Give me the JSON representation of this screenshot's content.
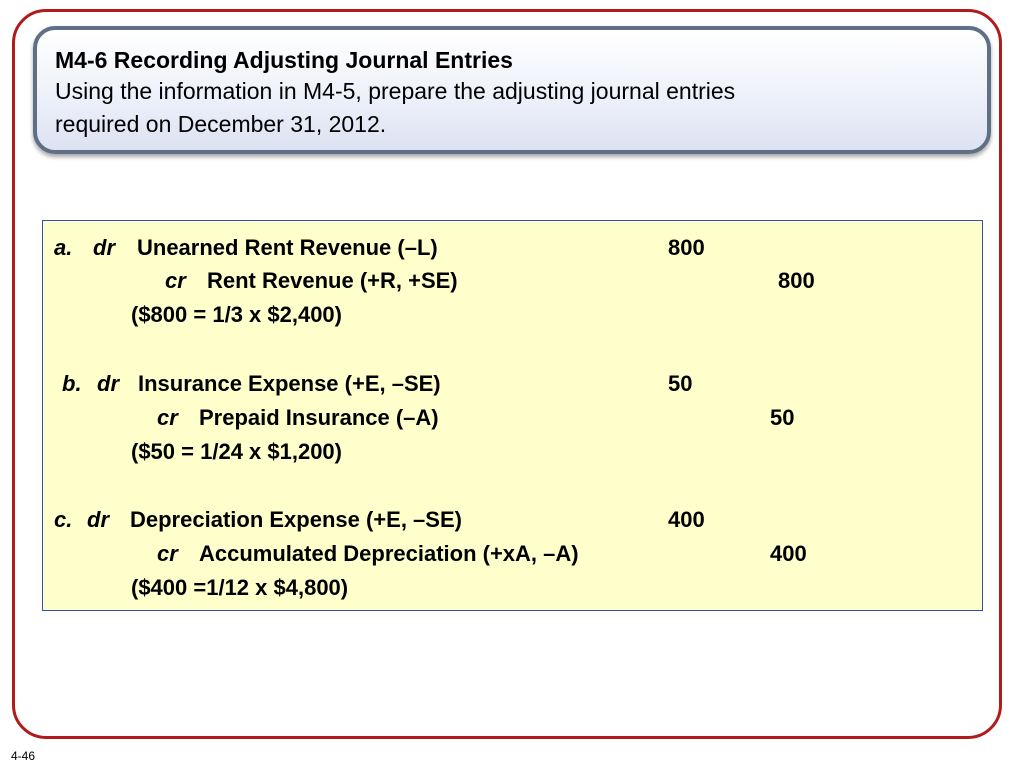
{
  "header": {
    "title": "M4-6 Recording Adjusting Journal Entries",
    "subtitle_line1": "Using the information in M4-5, prepare the adjusting journal entries",
    "subtitle_line2": "required on December 31, 2012."
  },
  "entries": [
    {
      "letter": "a.",
      "dr_label": "dr",
      "debit_account": "Unearned Rent Revenue (–L)",
      "debit_amount": "800",
      "cr_label": "cr",
      "credit_account": "Rent Revenue (+R, +SE)",
      "credit_amount": "800",
      "calc": "($800 = 1/3 x $2,400)"
    },
    {
      "letter": "b.",
      "dr_label": "dr",
      "debit_account": "Insurance Expense (+E, –SE)",
      "debit_amount": "50",
      "cr_label": "cr",
      "credit_account": "Prepaid Insurance (–A)",
      "credit_amount": "50",
      "calc": "($50 = 1/24 x $1,200)"
    },
    {
      "letter": "c.",
      "dr_label": "dr",
      "debit_account": "Depreciation Expense (+E, –SE)",
      "debit_amount": "400",
      "cr_label": "cr",
      "credit_account": "Accumulated Depreciation (+xA, –A)",
      "credit_amount": "400",
      "calc": "($400 =1/12 x $4,800)"
    }
  ],
  "footer": {
    "slide_number": "4-46"
  },
  "colors": {
    "frame_border": "#b01c1c",
    "title_border": "#5f6f86",
    "entries_background": "#ffffcc",
    "entries_border": "#2f4fb5"
  }
}
